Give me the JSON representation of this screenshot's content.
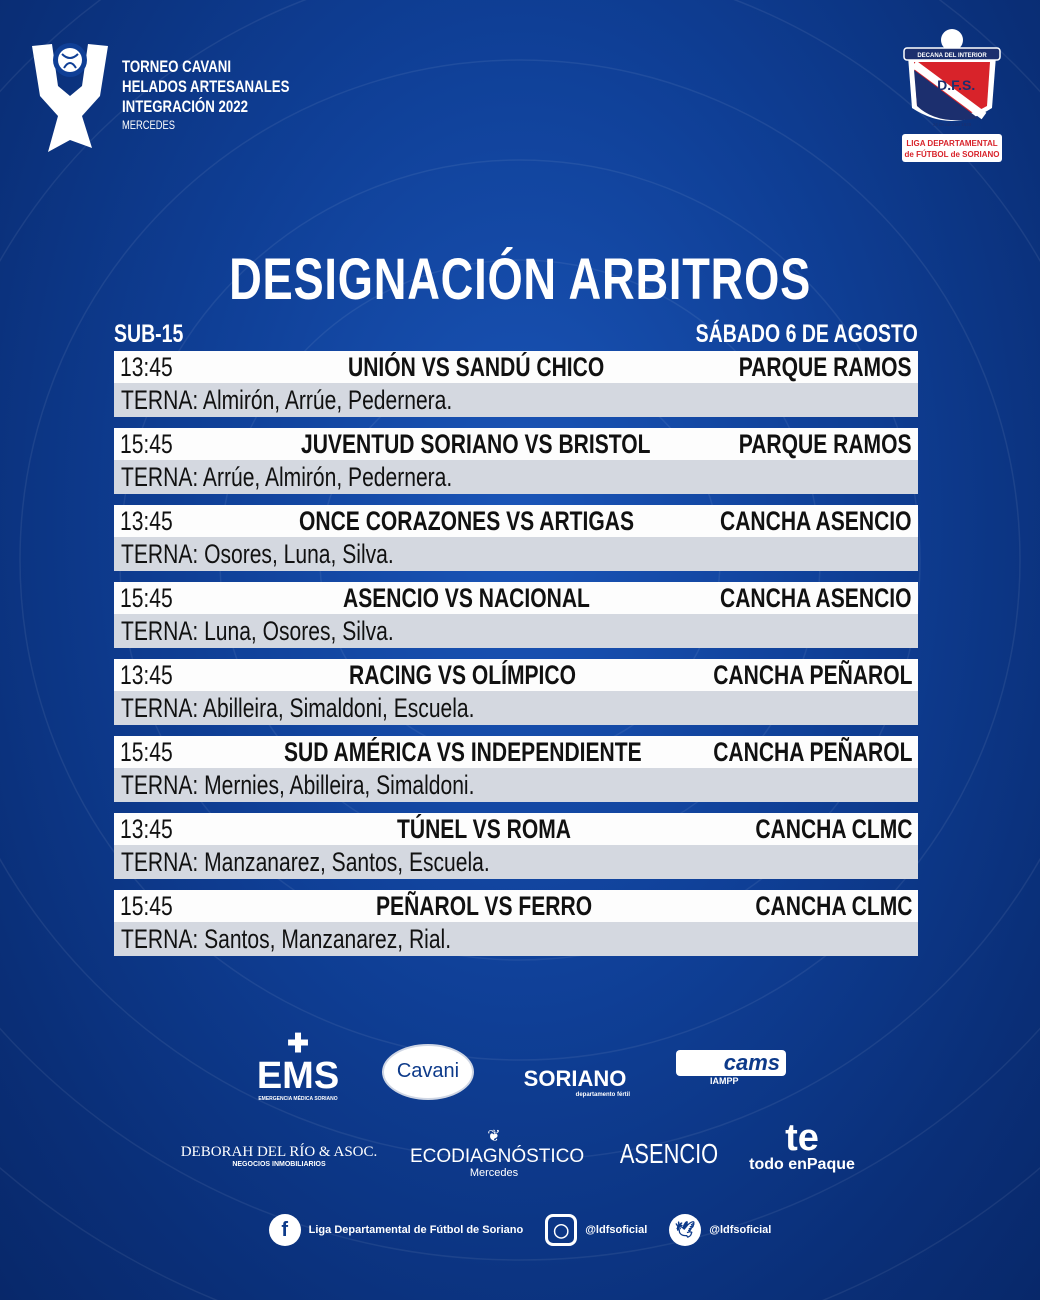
{
  "header": {
    "tournament_lines": [
      "TORNEO CAVANI",
      "HELADOS ARTESANALES",
      "INTEGRACIÓN 2022"
    ],
    "city": "MERCEDES",
    "crest": {
      "ribbon": "DECANA DEL INTERIOR",
      "initials": "L.D.F.S.",
      "founded": "24 de abril de 1929",
      "name_lines": [
        "LIGA DEPARTAMENTAL",
        "de FÚTBOL de SORIANO"
      ]
    }
  },
  "title": "DESIGNACIÓN ARBITROS",
  "category": "SUB-15",
  "date": "SÁBADO 6 DE AGOSTO",
  "matches": [
    {
      "time": "13:45",
      "match": "UNIÓN VS SANDÚ CHICO",
      "venue": "PARQUE RAMOS",
      "terna": "TERNA: Almirón, Arrúe, Pedernera."
    },
    {
      "time": "15:45",
      "match": "JUVENTUD SORIANO VS BRISTOL",
      "venue": "PARQUE RAMOS",
      "terna": "TERNA: Arrúe, Almirón, Pedernera."
    },
    {
      "time": "13:45",
      "match": "ONCE CORAZONES VS ARTIGAS",
      "venue": "CANCHA ASENCIO",
      "terna": "TERNA: Osores, Luna, Silva."
    },
    {
      "time": "15:45",
      "match": "ASENCIO VS NACIONAL",
      "venue": "CANCHA ASENCIO",
      "terna": "TERNA: Luna, Osores, Silva."
    },
    {
      "time": "13:45",
      "match": "RACING VS OLÍMPICO",
      "venue": "CANCHA PEÑAROL",
      "terna": "TERNA: Abilleira, Simaldoni, Escuela."
    },
    {
      "time": "15:45",
      "match": "SUD AMÉRICA VS INDEPENDIENTE",
      "venue": "CANCHA PEÑAROL",
      "terna": "TERNA: Mernies, Abilleira, Simaldoni."
    },
    {
      "time": "13:45",
      "match": "TÚNEL VS ROMA",
      "venue": "CANCHA CLMC",
      "terna": "TERNA: Manzanarez, Santos, Escuela."
    },
    {
      "time": "15:45",
      "match": "PEÑAROL VS FERRO",
      "venue": "CANCHA CLMC",
      "terna": "TERNA: Santos, Manzanarez, Rial."
    }
  ],
  "sponsors": {
    "ems": "EMS",
    "ems_sub": "EMERGENCIA MÉDICA SORIANO",
    "cavani": "Cavani",
    "soriano": "SORIANO",
    "soriano_sub": "departamento fértil",
    "cams": "cams",
    "cams_sub": "IAMPP",
    "deborah": "DEBORAH DEL RÍO & ASOC.",
    "deborah_sub": "NEGOCIOS INMOBILIARIOS",
    "eco": "ECODIAGNÓSTICO",
    "eco_sub": "Mercedes",
    "asencio": "ASENCIO",
    "te": "te",
    "te_sub": "todo enPaque"
  },
  "social": {
    "facebook": "Liga Departamental de Fútbol de Soriano",
    "instagram": "@ldfsoficial",
    "twitter": "@ldfsoficial"
  },
  "colors": {
    "background": "#0f3f96",
    "row_white": "#fdfdfd",
    "row_grey": "#d4d8e0",
    "crest_red": "#d8232a",
    "crest_navy": "#1c2f6e"
  }
}
